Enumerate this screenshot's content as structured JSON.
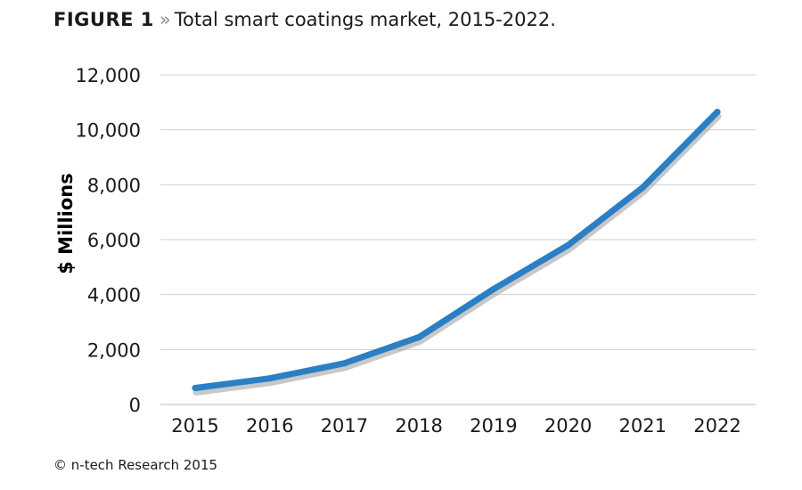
{
  "figure": {
    "label": "FIGURE 1",
    "separator": "»",
    "title": "Total smart coatings market, 2015-2022."
  },
  "credit": "© n-tech Research 2015",
  "colors": {
    "line": "#2b7fc4",
    "shadow": "#9a9a9a",
    "grid": "#d0d0d0",
    "text": "#1a1a1a"
  },
  "chart_data": {
    "type": "line",
    "title": "Total smart coatings market, 2015-2022.",
    "xlabel": "",
    "ylabel": "$ Millions",
    "x": [
      "2015",
      "2016",
      "2017",
      "2018",
      "2019",
      "2020",
      "2021",
      "2022"
    ],
    "series": [
      {
        "values": [
          600,
          950,
          1500,
          2450,
          4200,
          5800,
          7900,
          10650
        ]
      }
    ],
    "ylim": [
      0,
      12000
    ],
    "yticks": [
      0,
      2000,
      4000,
      6000,
      8000,
      10000,
      12000
    ],
    "ytick_labels": [
      "0",
      "2,000",
      "4,000",
      "6,000",
      "8,000",
      "10,000",
      "12,000"
    ],
    "grid": true,
    "legend": "none"
  }
}
